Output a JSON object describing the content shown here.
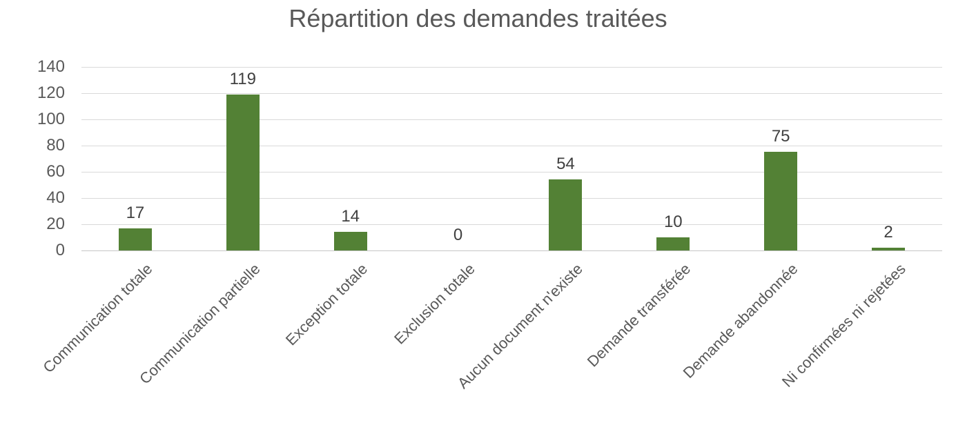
{
  "chart_data": {
    "type": "bar",
    "title": "Répartition des demandes traitées",
    "categories": [
      "Communication totale",
      "Communication partielle",
      "Exception totale",
      "Exclusion totale",
      "Aucun document n'existe",
      "Demande transférée",
      "Demande abandonnée",
      "Ni confirmées ni rejetées"
    ],
    "values": [
      17,
      119,
      14,
      0,
      54,
      10,
      75,
      2
    ],
    "data_labels": [
      "17",
      "119",
      "14",
      "0",
      "54",
      "10",
      "75",
      "2"
    ],
    "xlabel": "",
    "ylabel": "",
    "ylim": [
      0,
      140
    ],
    "yticks": [
      0,
      20,
      40,
      60,
      80,
      100,
      120,
      140
    ],
    "grid": true,
    "legend_position": "none",
    "x_label_rotation_deg": 45,
    "colors": {
      "bar": "#538135",
      "title_text": "#595959",
      "axis_text": "#595959",
      "data_label_text": "#404040",
      "gridline": "#D9D9D9",
      "axis_line": "#C6C6C6",
      "background": "#FFFFFF"
    }
  }
}
